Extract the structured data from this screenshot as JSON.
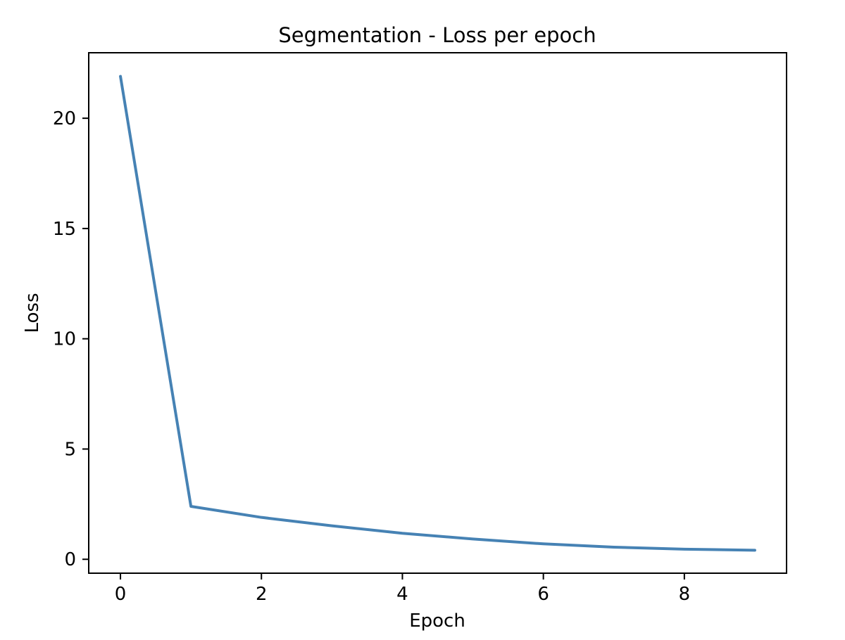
{
  "chart_data": {
    "type": "line",
    "title": "Segmentation - Loss per epoch",
    "xlabel": "Epoch",
    "ylabel": "Loss",
    "x": [
      0,
      1,
      2,
      3,
      4,
      5,
      6,
      7,
      8,
      9
    ],
    "series": [
      {
        "name": "loss",
        "values": [
          21.9,
          2.4,
          1.9,
          1.52,
          1.18,
          0.92,
          0.7,
          0.55,
          0.46,
          0.41
        ],
        "color": "#4682b4"
      }
    ],
    "xlim": [
      -0.45,
      9.45
    ],
    "ylim": [
      -0.63,
      22.97
    ],
    "xticks": [
      0,
      2,
      4,
      6,
      8
    ],
    "yticks": [
      0,
      5,
      10,
      15,
      20
    ],
    "grid": false,
    "legend": "none",
    "background_color": "#ffffff",
    "spine_color": "#000000",
    "text_color": "#000000"
  }
}
